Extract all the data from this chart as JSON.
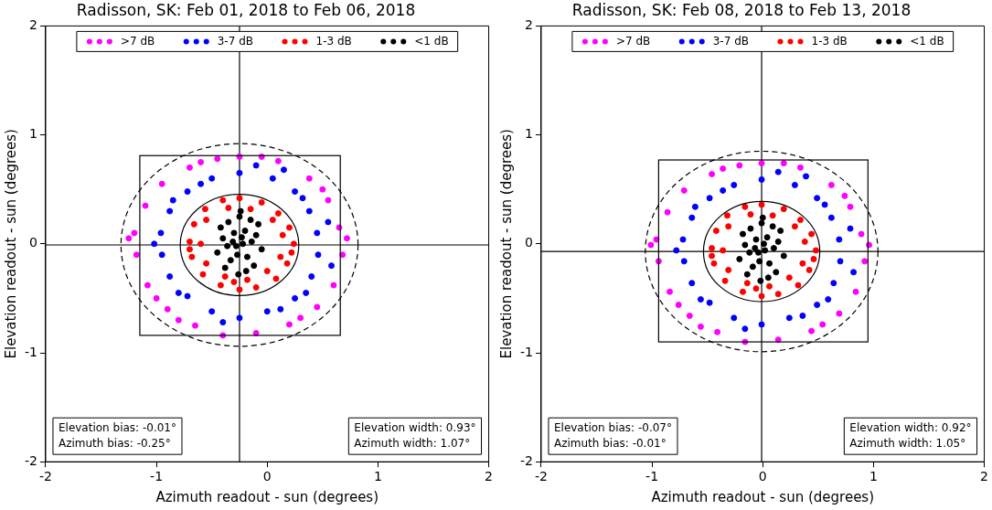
{
  "chart_data": [
    {
      "type": "scatter",
      "title": "Radisson, SK: Feb 01, 2018 to Feb 06, 2018",
      "xlabel": "Azimuth readout - sun (degrees)",
      "ylabel": "Elevation readout - sun (degrees)",
      "xlim": [
        -2,
        2
      ],
      "ylim": [
        -2,
        2
      ],
      "xticks": [
        -2,
        -1,
        0,
        1,
        2
      ],
      "yticks": [
        -2,
        -1,
        0,
        1,
        2
      ],
      "legend": "top",
      "marker": "circle",
      "annotations": [
        "Elevation bias: -0.01°",
        "Azimuth bias: -0.25°",
        "Elevation width: 0.93°",
        "Azimuth width: 1.07°"
      ],
      "ref_lines": [
        {
          "axis": "x",
          "value": -0.25,
          "color": "#000000"
        },
        {
          "axis": "y",
          "value": -0.01,
          "color": "#000000"
        }
      ],
      "series": [
        {
          "name": ">7 dB",
          "color": "#ff00ff",
          "x": [
            -0.25,
            0.1,
            0.38,
            0.55,
            0.65,
            0.68,
            0.6,
            0.45,
            0.2,
            -0.1,
            -0.4,
            -0.65,
            -0.9,
            -1.08,
            -1.18,
            -1.2,
            -1.1,
            -0.95,
            -0.7,
            -0.45,
            -1.25,
            0.72,
            -0.05,
            0.3,
            -0.8,
            -1.0,
            0.5,
            -0.6
          ],
          "values": [
            0.8,
            0.76,
            0.6,
            0.4,
            0.15,
            -0.1,
            -0.38,
            -0.58,
            -0.74,
            -0.82,
            -0.84,
            -0.75,
            -0.6,
            -0.38,
            -0.1,
            0.1,
            0.35,
            0.55,
            0.7,
            0.78,
            0.05,
            0.05,
            0.8,
            -0.68,
            -0.7,
            -0.5,
            0.5,
            0.75
          ]
        },
        {
          "name": "3-7 dB",
          "color": "#0000ff",
          "x": [
            -0.25,
            0.05,
            0.25,
            0.38,
            0.45,
            0.46,
            0.4,
            0.25,
            0.0,
            -0.25,
            -0.5,
            -0.72,
            -0.88,
            -0.95,
            -0.96,
            -0.88,
            -0.72,
            -0.5,
            -0.1,
            0.15,
            0.55,
            0.58,
            0.12,
            -0.4,
            -1.02,
            -0.8,
            -0.6,
            0.32,
            -0.85,
            0.35
          ],
          "values": [
            0.65,
            0.6,
            0.48,
            0.3,
            0.1,
            -0.1,
            -0.3,
            -0.5,
            -0.62,
            -0.68,
            -0.62,
            -0.48,
            -0.3,
            -0.1,
            0.1,
            0.3,
            0.48,
            0.6,
            0.72,
            0.68,
            0.2,
            -0.2,
            -0.6,
            -0.72,
            0.0,
            -0.45,
            0.55,
            0.42,
            0.4,
            -0.45
          ]
        },
        {
          "name": "1-3 dB",
          "color": "#ff0000",
          "x": [
            -0.25,
            -0.05,
            0.1,
            0.2,
            0.24,
            0.18,
            0.08,
            -0.1,
            -0.25,
            -0.42,
            -0.58,
            -0.68,
            -0.7,
            -0.66,
            -0.56,
            -0.4,
            -0.15,
            0.05,
            0.14,
            0.12,
            0.0,
            -0.18,
            -0.38,
            -0.55,
            -0.6,
            -0.55,
            -0.35,
            0.22,
            -0.7,
            -0.3
          ],
          "values": [
            0.42,
            0.38,
            0.28,
            0.15,
            0.0,
            -0.18,
            -0.32,
            -0.4,
            -0.42,
            -0.38,
            -0.28,
            -0.12,
            0.02,
            0.18,
            0.32,
            0.4,
            0.32,
            0.22,
            0.08,
            -0.12,
            -0.25,
            -0.33,
            -0.3,
            -0.18,
            0.0,
            0.22,
            0.33,
            -0.08,
            -0.05,
            -0.35
          ]
        },
        {
          "name": "<1 dB",
          "color": "#000000",
          "x": [
            -0.25,
            -0.35,
            -0.15,
            -0.3,
            -0.2,
            -0.4,
            -0.1,
            -0.28,
            -0.22,
            -0.45,
            -0.05,
            -0.33,
            -0.18,
            -0.38,
            -0.12,
            -0.26,
            -0.24,
            -0.42,
            -0.08,
            -0.31,
            -0.19,
            -0.36,
            -0.14,
            -0.27,
            -0.23
          ],
          "values": [
            0.25,
            0.2,
            0.22,
            0.1,
            0.12,
            0.05,
            0.08,
            -0.02,
            0.0,
            -0.08,
            -0.05,
            -0.15,
            -0.12,
            -0.22,
            -0.2,
            -0.28,
            0.3,
            0.15,
            0.18,
            0.02,
            -0.25,
            -0.02,
            0.02,
            -0.1,
            0.06
          ]
        }
      ]
    },
    {
      "type": "scatter",
      "title": "Radisson, SK: Feb 08, 2018 to Feb 13, 2018",
      "xlabel": "Azimuth readout - sun (degrees)",
      "ylabel": "Elevation readout - sun (degrees)",
      "xlim": [
        -2,
        2
      ],
      "ylim": [
        -2,
        2
      ],
      "xticks": [
        -2,
        -1,
        0,
        1,
        2
      ],
      "yticks": [
        -2,
        -1,
        0,
        1,
        2
      ],
      "legend": "top",
      "marker": "circle",
      "annotations": [
        "Elevation bias: -0.07°",
        "Azimuth bias: -0.01°",
        "Elevation width: 0.92°",
        "Azimuth width: 1.05°"
      ],
      "ref_lines": [
        {
          "axis": "x",
          "value": -0.01,
          "color": "#000000"
        },
        {
          "axis": "y",
          "value": -0.07,
          "color": "#000000"
        }
      ],
      "series": [
        {
          "name": ">7 dB",
          "color": "#ff00ff",
          "x": [
            -0.01,
            0.34,
            0.62,
            0.79,
            0.89,
            0.92,
            0.84,
            0.69,
            0.44,
            0.14,
            -0.16,
            -0.41,
            -0.66,
            -0.84,
            -0.94,
            -0.96,
            -0.86,
            -0.71,
            -0.46,
            -0.21,
            -1.01,
            0.96,
            0.19,
            0.54,
            -0.56,
            -0.76,
            0.74,
            -0.36
          ],
          "values": [
            0.74,
            0.7,
            0.54,
            0.34,
            0.09,
            -0.16,
            -0.44,
            -0.64,
            -0.8,
            -0.88,
            -0.9,
            -0.81,
            -0.66,
            -0.44,
            -0.16,
            0.04,
            0.29,
            0.49,
            0.64,
            0.72,
            -0.01,
            -0.01,
            0.74,
            -0.74,
            -0.76,
            -0.56,
            0.44,
            0.69
          ]
        },
        {
          "name": "3-7 dB",
          "color": "#0000ff",
          "x": [
            -0.01,
            0.29,
            0.49,
            0.62,
            0.69,
            0.7,
            0.64,
            0.49,
            0.24,
            -0.01,
            -0.26,
            -0.48,
            -0.64,
            -0.71,
            -0.72,
            -0.64,
            -0.48,
            -0.26,
            0.14,
            0.39,
            0.79,
            0.82,
            0.36,
            -0.16,
            -0.78,
            -0.56,
            -0.36,
            0.56,
            -0.61,
            0.59
          ],
          "values": [
            0.59,
            0.54,
            0.42,
            0.24,
            0.04,
            -0.16,
            -0.36,
            -0.56,
            -0.68,
            -0.74,
            -0.68,
            -0.54,
            -0.36,
            -0.16,
            0.04,
            0.24,
            0.42,
            0.54,
            0.66,
            0.62,
            0.14,
            -0.26,
            -0.66,
            -0.78,
            -0.06,
            -0.51,
            0.49,
            0.36,
            0.34,
            -0.51
          ]
        },
        {
          "name": "1-3 dB",
          "color": "#ff0000",
          "x": [
            -0.01,
            0.19,
            0.34,
            0.44,
            0.48,
            0.42,
            0.32,
            0.14,
            -0.01,
            -0.18,
            -0.34,
            -0.44,
            -0.46,
            -0.42,
            -0.32,
            -0.16,
            0.09,
            0.29,
            0.38,
            0.36,
            0.24,
            0.06,
            -0.14,
            -0.31,
            -0.36,
            -0.31,
            -0.11,
            0.46,
            -0.46,
            -0.06
          ],
          "values": [
            0.36,
            0.32,
            0.22,
            0.09,
            -0.06,
            -0.24,
            -0.38,
            -0.46,
            -0.48,
            -0.44,
            -0.34,
            -0.18,
            -0.04,
            0.12,
            0.26,
            0.34,
            0.26,
            0.16,
            0.02,
            -0.18,
            -0.31,
            -0.39,
            -0.36,
            -0.24,
            -0.06,
            0.16,
            0.27,
            -0.14,
            -0.11,
            -0.41
          ]
        },
        {
          "name": "<1 dB",
          "color": "#000000",
          "x": [
            -0.01,
            -0.11,
            0.09,
            -0.06,
            0.04,
            -0.16,
            0.14,
            -0.04,
            0.02,
            -0.21,
            0.19,
            -0.09,
            0.06,
            -0.14,
            0.12,
            -0.02,
            0.0,
            -0.18,
            0.16,
            -0.07,
            0.05,
            -0.12,
            0.1,
            -0.03,
            0.01
          ],
          "values": [
            0.19,
            0.14,
            0.16,
            0.04,
            0.06,
            -0.01,
            0.02,
            -0.08,
            -0.06,
            -0.14,
            -0.11,
            -0.21,
            -0.18,
            -0.28,
            -0.26,
            -0.34,
            0.24,
            0.09,
            0.12,
            -0.04,
            -0.31,
            -0.08,
            -0.04,
            -0.16,
            0.0
          ]
        }
      ]
    }
  ]
}
